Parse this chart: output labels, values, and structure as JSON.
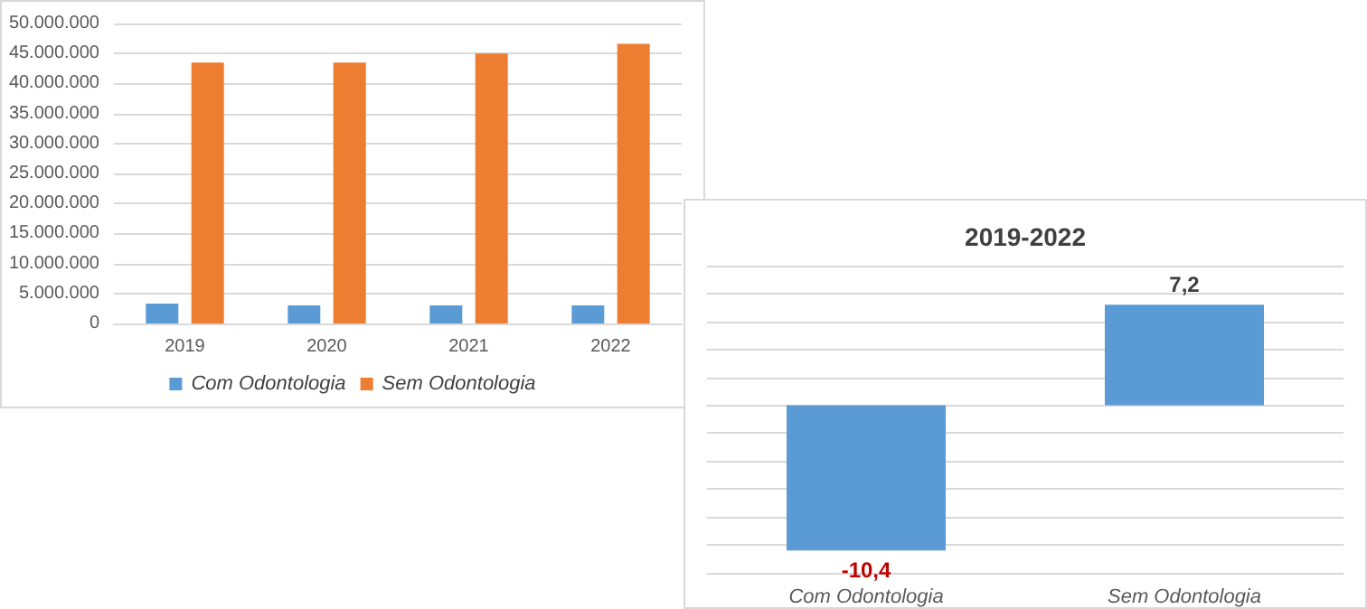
{
  "chart_data": [
    {
      "type": "bar",
      "categories": [
        "2019",
        "2020",
        "2021",
        "2022"
      ],
      "series": [
        {
          "name": "Com Odontologia",
          "color": "#5b9bd5",
          "values": [
            3300000,
            3000000,
            3000000,
            3000000
          ]
        },
        {
          "name": "Sem Odontologia",
          "color": "#ed7d31",
          "values": [
            43500000,
            43500000,
            45000000,
            46600000
          ]
        }
      ],
      "ylim": [
        0,
        50000000
      ],
      "yticks": [
        {
          "value": 0,
          "label": "0"
        },
        {
          "value": 5000000,
          "label": "5.000.000"
        },
        {
          "value": 10000000,
          "label": "10.000.000"
        },
        {
          "value": 15000000,
          "label": "15.000.000"
        },
        {
          "value": 20000000,
          "label": "20.000.000"
        },
        {
          "value": 25000000,
          "label": "25.000.000"
        },
        {
          "value": 30000000,
          "label": "30.000.000"
        },
        {
          "value": 35000000,
          "label": "35.000.000"
        },
        {
          "value": 40000000,
          "label": "40.000.000"
        },
        {
          "value": 45000000,
          "label": "45.000.000"
        },
        {
          "value": 50000000,
          "label": "50.000.000"
        }
      ],
      "grid": "y",
      "legend": "bottom"
    },
    {
      "type": "bar",
      "title": "2019-2022",
      "categories": [
        "Com Odontologia",
        "Sem Odontologia"
      ],
      "series": [
        {
          "color": "#5b9bd5",
          "values": [
            -10.4,
            7.2
          ],
          "value_labels": [
            "-10,4",
            "7,2"
          ]
        }
      ],
      "ylim": [
        -12,
        10
      ],
      "yticks": [
        {
          "value": -12,
          "label": null
        },
        {
          "value": -10,
          "label": null
        },
        {
          "value": -8,
          "label": null
        },
        {
          "value": -6,
          "label": null
        },
        {
          "value": -4,
          "label": null
        },
        {
          "value": -2,
          "label": null
        },
        {
          "value": 0,
          "label": null
        },
        {
          "value": 2,
          "label": null
        },
        {
          "value": 4,
          "label": null
        },
        {
          "value": 6,
          "label": null
        },
        {
          "value": 8,
          "label": null
        },
        {
          "value": 10,
          "label": null
        }
      ],
      "grid": "y",
      "tick_labels": "x",
      "legend": false
    }
  ]
}
